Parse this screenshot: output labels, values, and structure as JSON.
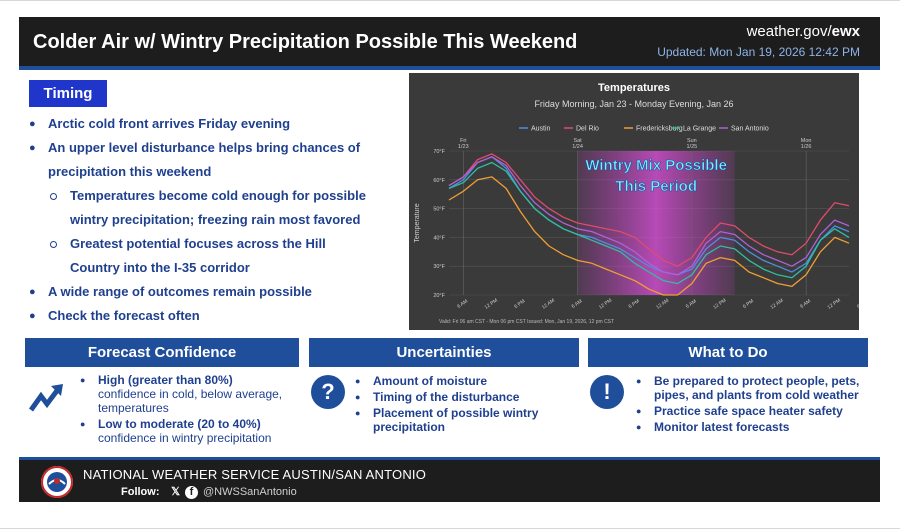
{
  "header": {
    "title": "Colder Air w/ Wintry Precipitation Possible This Weekend",
    "site_prefix": "weather.gov/",
    "site_office": "ewx",
    "updated": "Updated: Mon Jan 19, 2026 12:42 PM"
  },
  "timing": {
    "label": "Timing",
    "bullets": [
      "Arctic cold front arrives Friday evening",
      "An upper level disturbance helps bring chances of",
      "precipitation this weekend",
      "Temperatures become cold enough for possible",
      "wintry precipitation; freezing rain most favored",
      "Greatest potential focuses across the Hill",
      "Country into the I-35 corridor",
      "A wide range of outcomes remain possible",
      "Check the forecast often"
    ]
  },
  "chart_data": {
    "type": "line",
    "title": "Temperatures",
    "subtitle": "Friday Morning, Jan 23 - Monday Evening, Jan 26",
    "ylabel": "Temperature",
    "ylim": [
      20,
      70
    ],
    "yticks": [
      "70°F",
      "60°F",
      "50°F",
      "40°F",
      "30°F",
      "20°F"
    ],
    "x_ticks": [
      "6 AM",
      "12 PM",
      "6 PM",
      "12 AM",
      "6 AM",
      "12 PM",
      "6 PM",
      "12 AM",
      "6 AM",
      "12 PM",
      "6 PM",
      "12 AM",
      "6 AM",
      "12 PM",
      "6 PM"
    ],
    "day_labels": [
      "Fri 1/23",
      "Sat 1/24",
      "Sun 1/25",
      "Mon 1/26"
    ],
    "x": [
      0,
      3,
      6,
      9,
      12,
      15,
      18,
      21,
      24,
      27,
      30,
      33,
      36,
      39,
      42,
      45,
      48,
      51,
      54,
      57,
      60,
      63,
      66,
      69,
      72,
      75,
      78,
      81,
      84
    ],
    "series": [
      {
        "name": "Austin",
        "color": "#4f8ee0",
        "values": [
          57,
          60,
          66,
          68,
          64,
          56,
          50,
          46,
          43,
          41,
          40,
          38,
          36,
          33,
          30,
          28,
          27,
          29,
          36,
          40,
          39,
          35,
          32,
          30,
          28,
          31,
          39,
          44,
          42
        ]
      },
      {
        "name": "Del Rio",
        "color": "#e04a6e",
        "values": [
          58,
          61,
          67,
          69,
          66,
          60,
          54,
          50,
          47,
          45,
          44,
          43,
          42,
          40,
          36,
          32,
          30,
          33,
          40,
          45,
          44,
          40,
          37,
          35,
          34,
          38,
          46,
          52,
          51
        ]
      },
      {
        "name": "Fredericksburg",
        "color": "#f0a030",
        "values": [
          53,
          56,
          60,
          61,
          57,
          49,
          42,
          37,
          34,
          32,
          31,
          29,
          27,
          25,
          22,
          20,
          20,
          24,
          31,
          33,
          32,
          28,
          26,
          24,
          23,
          27,
          35,
          40,
          38
        ]
      },
      {
        "name": "La Grange",
        "color": "#2fbfa0",
        "values": [
          57,
          59,
          64,
          66,
          63,
          56,
          50,
          46,
          43,
          41,
          39,
          37,
          35,
          31,
          28,
          25,
          24,
          27,
          34,
          37,
          36,
          32,
          29,
          27,
          26,
          30,
          39,
          43,
          40
        ]
      },
      {
        "name": "San Antonio",
        "color": "#b060d8",
        "values": [
          58,
          61,
          66,
          68,
          65,
          58,
          52,
          48,
          45,
          43,
          42,
          40,
          38,
          35,
          31,
          28,
          27,
          30,
          38,
          42,
          41,
          37,
          34,
          32,
          30,
          33,
          41,
          46,
          44
        ]
      }
    ],
    "highlight": {
      "label_line1": "Wintry Mix Possible",
      "label_line2": "This Period",
      "x_start": 27,
      "x_end": 60
    },
    "footnote": "Valid: Fri 06 am CST - Mon 06 pm CST    Issued: Mon, Jan 19, 2026, 12 pm CST"
  },
  "confidence": {
    "header": "Forecast Confidence",
    "items": [
      {
        "bold": "High (greater than 80%)",
        "text": "confidence in cold, below average, temperatures"
      },
      {
        "bold": "Low to moderate (20 to 40%)",
        "text": "confidence in wintry precipitation"
      }
    ]
  },
  "uncertainties": {
    "header": "Uncertainties",
    "icon": "?",
    "items": [
      "Amount of moisture",
      "Timing of the disturbance",
      "Placement of possible wintry precipitation"
    ]
  },
  "todo": {
    "header": "What to Do",
    "icon": "!",
    "items": [
      "Be prepared to protect people, pets, pipes, and plants from cold weather",
      "Practice safe space heater safety",
      "Monitor latest forecasts"
    ]
  },
  "footer": {
    "org": "NATIONAL WEATHER SERVICE AUSTIN/SAN ANTONIO",
    "follow": "Follow:",
    "handle": "@NWSSanAntonio"
  },
  "colors": {
    "brand_blue": "#1f4e9b",
    "timing_blue": "#2035c9",
    "text_blue": "#1f3f8f",
    "dark": "#1d1d1d"
  },
  "icons": [
    "trend-up-icon",
    "question-icon",
    "exclamation-icon",
    "x-icon",
    "facebook-icon",
    "nws-logo-icon"
  ]
}
